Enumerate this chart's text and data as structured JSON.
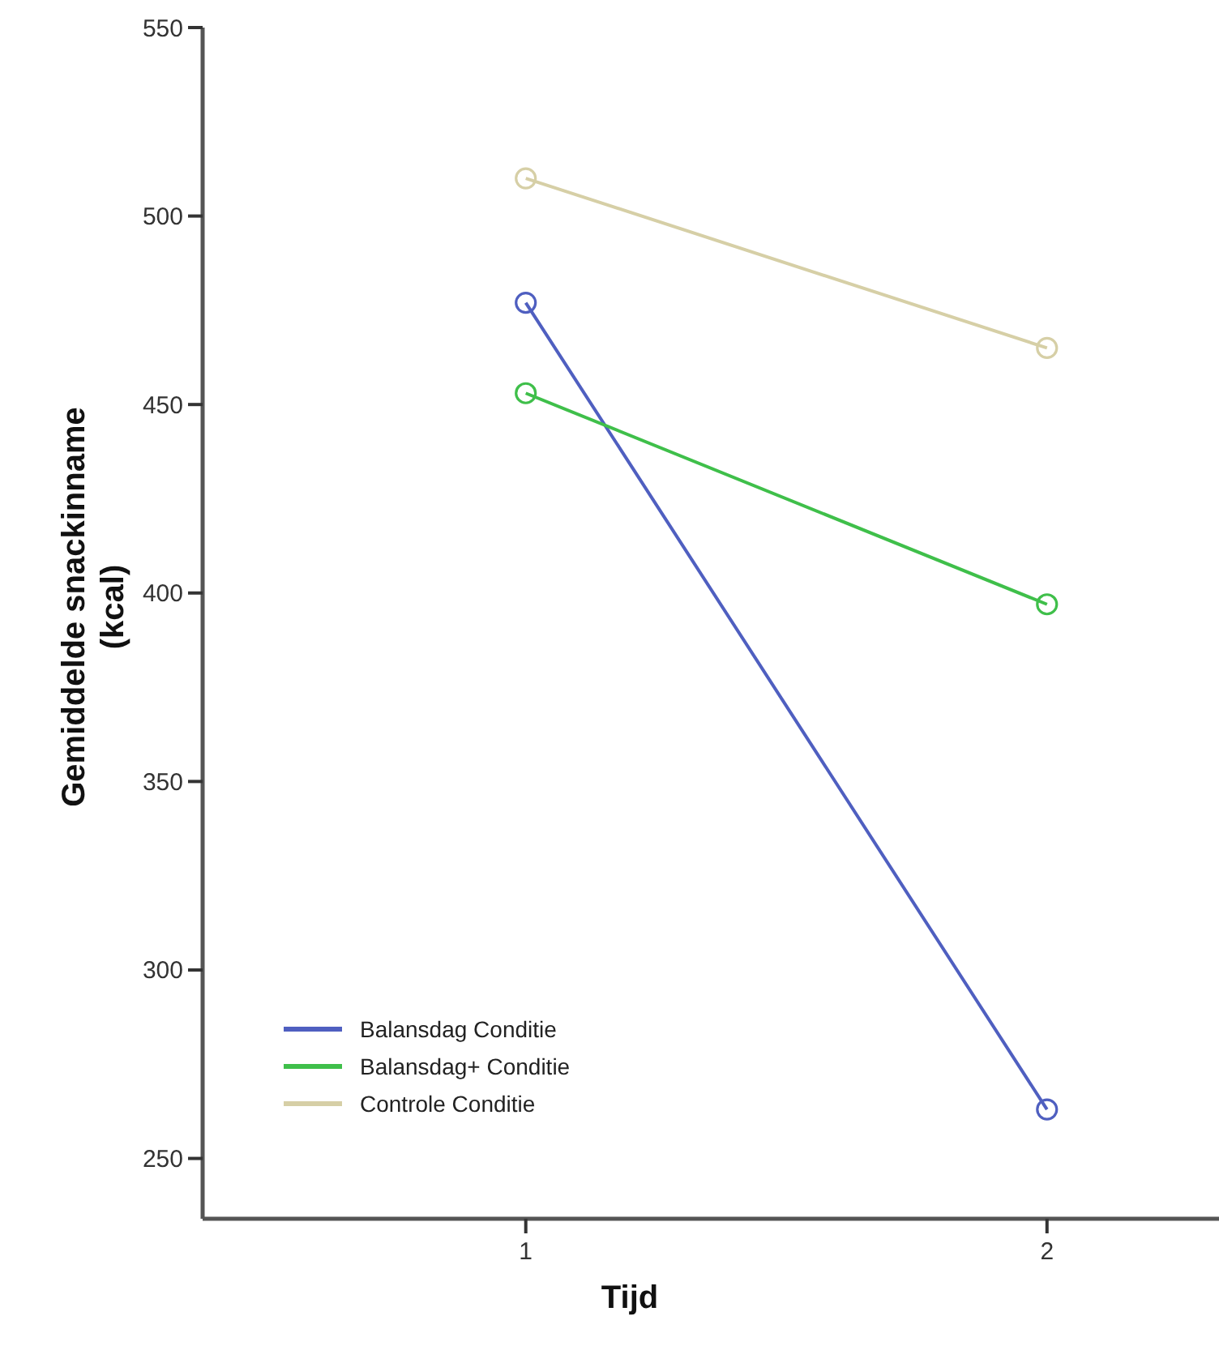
{
  "chart_data": {
    "type": "line",
    "xlabel": "Tijd",
    "ylabel": "Gemiddelde snackinname\n(kcal)",
    "x": [
      1,
      2
    ],
    "xlim": [
      0.38,
      2.33
    ],
    "xticks": [
      1,
      2
    ],
    "series": [
      {
        "name": "Balansdag Conditie",
        "color": "#4f5fc0",
        "values": [
          477,
          263
        ]
      },
      {
        "name": "Balansdag+ Conditie",
        "color": "#3fbf4a",
        "values": [
          453,
          397
        ]
      },
      {
        "name": "Controle Conditie",
        "color": "#d6cfa6",
        "values": [
          510,
          465
        ]
      }
    ],
    "ylim": [
      234,
      550
    ],
    "yticks": [
      250,
      300,
      350,
      400,
      450,
      500,
      550
    ],
    "marker": "circle",
    "line_style": "solid",
    "legend": "bottom left",
    "grid": false
  }
}
